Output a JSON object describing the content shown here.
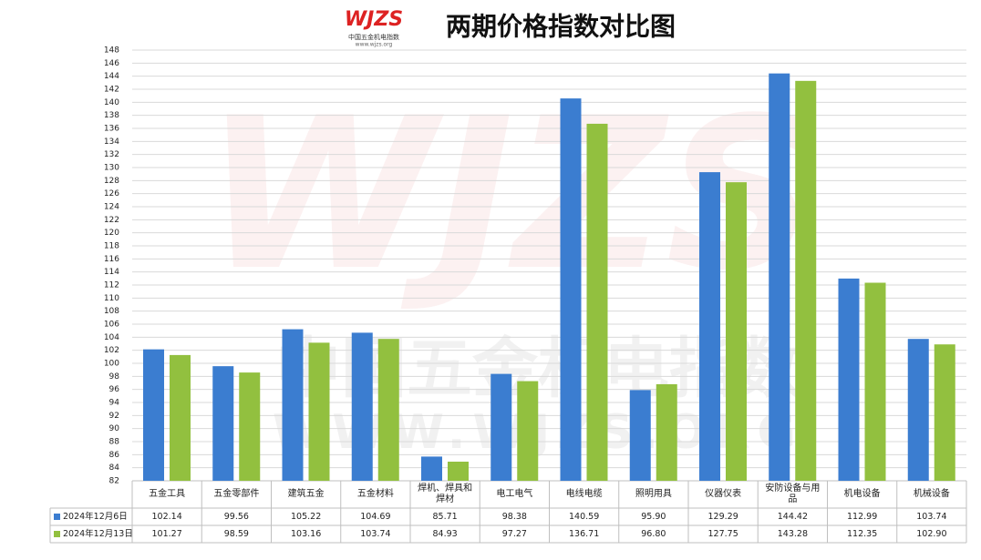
{
  "logo": {
    "brand": "WJZS",
    "name": "中国五金机电指数",
    "url": "www.wjzs.org"
  },
  "watermark": {
    "brand": "WJZS",
    "name": "中国五金机电指数",
    "url": "WWW.WJZS.ORG"
  },
  "chart_data": {
    "type": "bar",
    "title": "两期价格指数对比图",
    "categories": [
      "五金工具",
      "五金零部件",
      "建筑五金",
      "五金材料",
      "焊机、焊具和焊材",
      "电工电气",
      "电线电缆",
      "照明用具",
      "仪器仪表",
      "安防设备与用品",
      "机电设备",
      "机械设备"
    ],
    "series": [
      {
        "name": "2024年12月6日",
        "color": "#3b7dd0",
        "values": [
          102.14,
          99.56,
          105.22,
          104.69,
          85.71,
          98.38,
          140.59,
          95.9,
          129.29,
          144.42,
          112.99,
          103.74
        ],
        "value_labels": [
          "102.14",
          "99.56",
          "105.22",
          "104.69",
          "85.71",
          "98.38",
          "140.59",
          "95.90",
          "129.29",
          "144.42",
          "112.99",
          "103.74"
        ]
      },
      {
        "name": "2024年12月13日",
        "color": "#92c03f",
        "values": [
          101.27,
          98.59,
          103.16,
          103.74,
          84.93,
          97.27,
          136.71,
          96.8,
          127.75,
          143.28,
          112.35,
          102.9
        ],
        "value_labels": [
          "101.27",
          "98.59",
          "103.16",
          "103.74",
          "84.93",
          "97.27",
          "136.71",
          "96.80",
          "127.75",
          "143.28",
          "112.35",
          "102.90"
        ]
      }
    ],
    "ylim": [
      82,
      148
    ],
    "yticks": [
      82,
      84,
      86,
      88,
      90,
      92,
      94,
      96,
      98,
      100,
      102,
      104,
      106,
      108,
      110,
      112,
      114,
      116,
      118,
      120,
      122,
      124,
      126,
      128,
      130,
      132,
      134,
      136,
      138,
      140,
      142,
      144,
      146,
      148
    ],
    "grid": true
  }
}
